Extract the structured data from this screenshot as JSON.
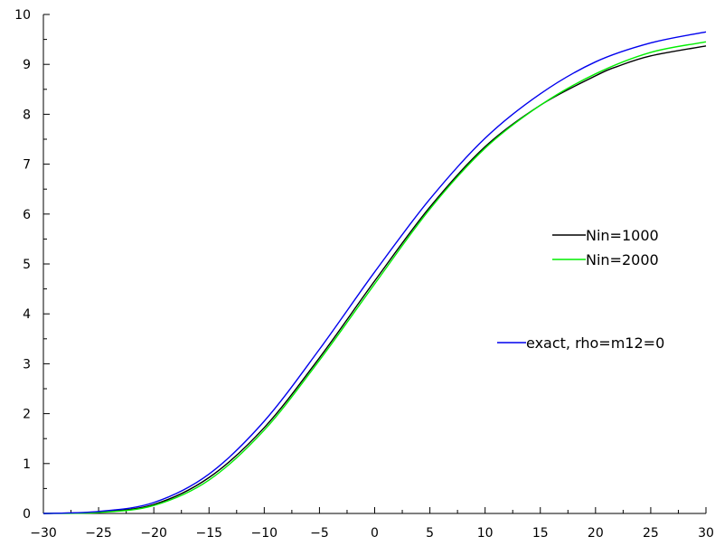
{
  "chart_data": {
    "type": "line",
    "title": "",
    "xlabel": "",
    "ylabel": "",
    "xlim": [
      -30,
      30
    ],
    "ylim": [
      0,
      10
    ],
    "grid": false,
    "xticks": [
      -30,
      -25,
      -20,
      -15,
      -10,
      -5,
      0,
      5,
      10,
      15,
      20,
      25,
      30
    ],
    "yticks": [
      0,
      1,
      2,
      3,
      4,
      5,
      6,
      7,
      8,
      9,
      10
    ],
    "xtick_labels": [
      "−30",
      "−25",
      "−20",
      "−15",
      "−10",
      "−5",
      "0",
      "5",
      "10",
      "15",
      "20",
      "25",
      "30"
    ],
    "ytick_labels": [
      "0",
      "1",
      "2",
      "3",
      "4",
      "5",
      "6",
      "7",
      "8",
      "9",
      "10"
    ],
    "series": [
      {
        "name": "Nin=1000",
        "color": "#000000",
        "x": [
          -30,
          -25,
          -20,
          -15,
          -10,
          -5,
          0,
          5,
          10,
          15,
          20,
          22,
          25,
          30
        ],
        "y": [
          0.0,
          0.03,
          0.18,
          0.72,
          1.72,
          3.12,
          4.66,
          6.14,
          7.35,
          8.18,
          8.77,
          8.96,
          9.17,
          9.37
        ]
      },
      {
        "name": "Nin=2000",
        "color": "#00ee00",
        "x": [
          -30,
          -25,
          -20,
          -15,
          -10,
          -5,
          0,
          5,
          10,
          15,
          20,
          25,
          30
        ],
        "y": [
          0.0,
          0.02,
          0.16,
          0.67,
          1.67,
          3.07,
          4.6,
          6.1,
          7.32,
          8.18,
          8.81,
          9.24,
          9.45
        ]
      },
      {
        "name": "exact, rho=m12=0",
        "color": "#0000ee",
        "x": [
          -30,
          -25,
          -20,
          -15,
          -10,
          -5,
          0,
          5,
          10,
          15,
          20,
          25,
          30
        ],
        "y": [
          0.0,
          0.04,
          0.22,
          0.79,
          1.85,
          3.29,
          4.84,
          6.3,
          7.52,
          8.41,
          9.05,
          9.43,
          9.65
        ]
      }
    ],
    "legends": [
      {
        "series": 0,
        "placement": "right"
      },
      {
        "series": 1,
        "placement": "right"
      },
      {
        "series": 2,
        "placement": "right"
      }
    ]
  }
}
